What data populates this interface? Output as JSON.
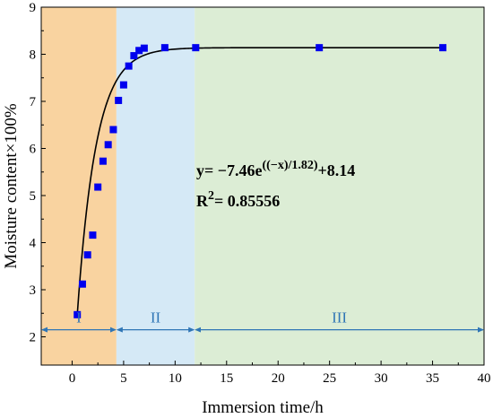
{
  "chart_data": {
    "type": "scatter",
    "title": "",
    "xlabel": "Immersion time/h",
    "ylabel": "Moisture content×100%",
    "xlim": [
      -3,
      40
    ],
    "ylim": [
      1.4,
      9
    ],
    "xticks": [
      0,
      5,
      10,
      15,
      20,
      25,
      30,
      35,
      40
    ],
    "yticks": [
      2,
      3,
      4,
      5,
      6,
      7,
      8,
      9
    ],
    "grid": false,
    "series": [
      {
        "marker": "square",
        "color": "#0000ee",
        "points": [
          [
            0.5,
            2.47
          ],
          [
            1.0,
            3.12
          ],
          [
            1.5,
            3.74
          ],
          [
            2.0,
            4.16
          ],
          [
            2.5,
            5.18
          ],
          [
            3.0,
            5.73
          ],
          [
            3.5,
            6.08
          ],
          [
            4.0,
            6.4
          ],
          [
            4.5,
            7.02
          ],
          [
            5.0,
            7.35
          ],
          [
            5.5,
            7.75
          ],
          [
            6.0,
            7.97
          ],
          [
            6.5,
            8.08
          ],
          [
            7.0,
            8.13
          ],
          [
            9.0,
            8.14
          ],
          [
            12.0,
            8.14
          ],
          [
            24.0,
            8.14
          ],
          [
            36.0,
            8.14
          ]
        ]
      }
    ],
    "fit": {
      "a": -7.46,
      "t": 1.82,
      "c": 8.14,
      "x_range": [
        0.5,
        36
      ],
      "color": "#000000"
    },
    "regions": [
      {
        "label": "I",
        "x_start": -3,
        "x_end": 4.3,
        "color": "#f9d3a0"
      },
      {
        "label": "II",
        "x_start": 4.3,
        "x_end": 11.9,
        "color": "#d5e9f6"
      },
      {
        "label": "III",
        "x_start": 11.9,
        "x_end": 40,
        "color": "#dcedd5"
      }
    ],
    "stage_arrow_y": 2.15,
    "stage_arrow_color": "#2f75b5",
    "annotation": {
      "eq_main": "y= −7.46e",
      "eq_exp": "((−x)/1.82)",
      "eq_tail": "+8.14",
      "r2_label": "R",
      "r2_exp": "2",
      "r2_value": "= 0.85556"
    }
  }
}
